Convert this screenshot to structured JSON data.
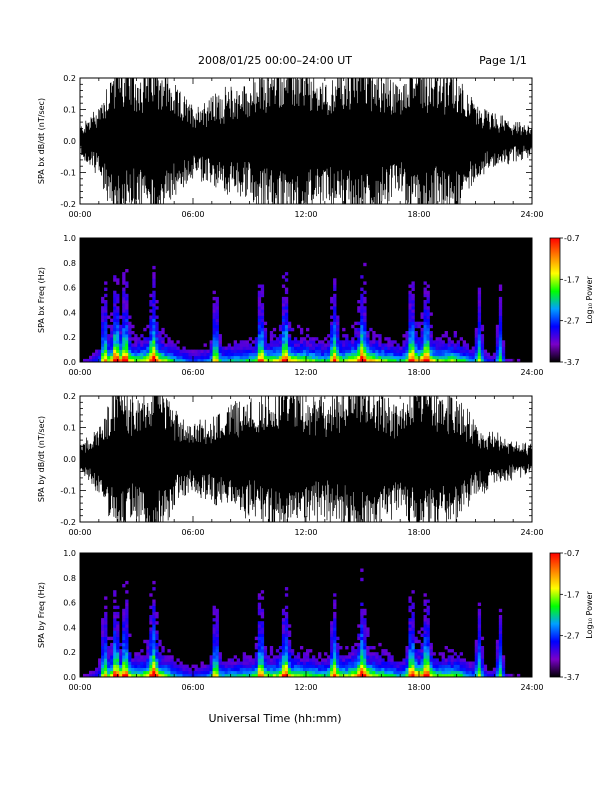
{
  "header": {
    "title": "2008/01/25  00:00–24:00 UT",
    "page": "Page 1/1"
  },
  "xlabel": "Universal Time (hh:mm)",
  "colorbar": {
    "label": "Log₁₀ Power",
    "tick_labels": [
      "-0.7",
      "-1.7",
      "-2.7",
      "-3.7"
    ],
    "range": [
      -3.7,
      -0.7
    ],
    "colors": [
      "#000000",
      "#7a00c8",
      "#0000ff",
      "#00a0ff",
      "#00ff00",
      "#ffff00",
      "#ff8000",
      "#ff0000"
    ]
  },
  "chart_data": [
    {
      "type": "line",
      "ylabel": "SPA bx dB/dt (nT/sec)",
      "ylim": [
        -0.2,
        0.2
      ],
      "ytick_labels": [
        "-0.2",
        "-0.1",
        "0.0",
        "0.1",
        "0.2"
      ],
      "xlim": [
        "00:00",
        "24:00"
      ],
      "xtick_labels": [
        "00:00",
        "06:00",
        "12:00",
        "18:00",
        "24:00"
      ],
      "envelope": {
        "x": [
          "00:00",
          "01:00",
          "02:00",
          "03:00",
          "04:00",
          "05:00",
          "06:00",
          "07:00",
          "08:00",
          "09:00",
          "10:00",
          "11:00",
          "12:00",
          "13:00",
          "14:00",
          "15:00",
          "16:00",
          "17:00",
          "18:00",
          "19:00",
          "20:00",
          "21:00",
          "22:00",
          "23:00",
          "24:00"
        ],
        "amplitude": [
          0.03,
          0.08,
          0.2,
          0.15,
          0.2,
          0.12,
          0.08,
          0.1,
          0.12,
          0.13,
          0.16,
          0.18,
          0.16,
          0.13,
          0.16,
          0.2,
          0.16,
          0.12,
          0.2,
          0.15,
          0.16,
          0.08,
          0.06,
          0.04,
          0.03
        ]
      },
      "grid": false
    },
    {
      "type": "heatmap",
      "ylabel": "SPA bx Freq (Hz)",
      "ylim": [
        0.0,
        1.0
      ],
      "ytick_labels": [
        "0.0",
        "0.2",
        "0.4",
        "0.6",
        "0.8",
        "1.0"
      ],
      "xlim": [
        "00:00",
        "24:00"
      ],
      "xtick_labels": [
        "00:00",
        "06:00",
        "12:00",
        "18:00",
        "24:00"
      ],
      "zlabel": "Log₁₀ Power",
      "zlim": [
        -3.7,
        -0.7
      ],
      "bursts_utc_hours": [
        1.3,
        1.9,
        2.4,
        3.9,
        7.2,
        9.6,
        10.9,
        13.5,
        15.0,
        17.6,
        18.4,
        21.2,
        22.3
      ],
      "grid": false
    },
    {
      "type": "line",
      "ylabel": "SPA by dB/dt (nT/sec)",
      "ylim": [
        -0.2,
        0.2
      ],
      "ytick_labels": [
        "-0.2",
        "-0.1",
        "0.0",
        "0.1",
        "0.2"
      ],
      "xlim": [
        "00:00",
        "24:00"
      ],
      "xtick_labels": [
        "00:00",
        "06:00",
        "12:00",
        "18:00",
        "24:00"
      ],
      "envelope": {
        "x": [
          "00:00",
          "01:00",
          "02:00",
          "03:00",
          "04:00",
          "05:00",
          "06:00",
          "07:00",
          "08:00",
          "09:00",
          "10:00",
          "11:00",
          "12:00",
          "13:00",
          "14:00",
          "15:00",
          "16:00",
          "17:00",
          "18:00",
          "19:00",
          "20:00",
          "21:00",
          "22:00",
          "23:00",
          "24:00"
        ],
        "amplitude": [
          0.03,
          0.07,
          0.18,
          0.14,
          0.2,
          0.11,
          0.07,
          0.1,
          0.12,
          0.13,
          0.15,
          0.17,
          0.15,
          0.13,
          0.15,
          0.2,
          0.15,
          0.11,
          0.2,
          0.14,
          0.15,
          0.08,
          0.06,
          0.04,
          0.03
        ]
      },
      "grid": false
    },
    {
      "type": "heatmap",
      "ylabel": "SPA by Freq (Hz)",
      "ylim": [
        0.0,
        1.0
      ],
      "ytick_labels": [
        "0.0",
        "0.2",
        "0.4",
        "0.6",
        "0.8",
        "1.0"
      ],
      "xlim": [
        "00:00",
        "24:00"
      ],
      "xtick_labels": [
        "00:00",
        "06:00",
        "12:00",
        "18:00",
        "24:00"
      ],
      "zlabel": "Log₁₀ Power",
      "zlim": [
        -3.7,
        -0.7
      ],
      "bursts_utc_hours": [
        1.3,
        1.9,
        2.4,
        3.9,
        7.2,
        9.6,
        10.9,
        13.5,
        15.0,
        17.6,
        18.4,
        21.2,
        22.3
      ],
      "grid": false
    }
  ]
}
